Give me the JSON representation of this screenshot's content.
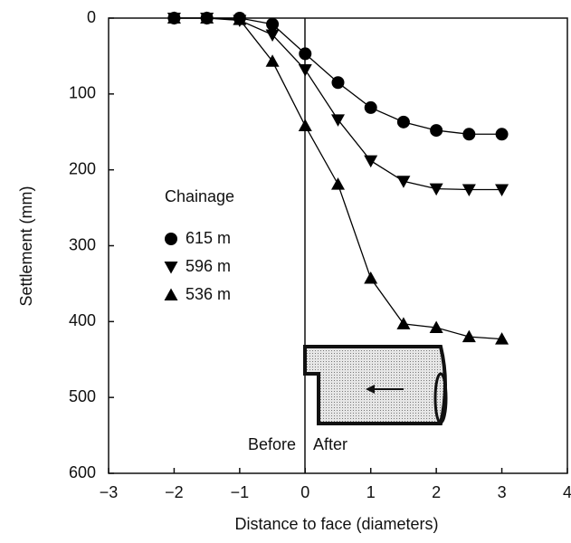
{
  "chart_data": {
    "type": "line",
    "xlabel": "Distance to face (diameters)",
    "ylabel": "Settlement (mm)",
    "xlim": [
      -3,
      4
    ],
    "xticks": [
      {
        "value": -3,
        "label": "−3"
      },
      {
        "value": -2,
        "label": "−2"
      },
      {
        "value": -1,
        "label": "−1"
      },
      0,
      1,
      2,
      3,
      4
    ],
    "ylim": [
      0,
      600
    ],
    "yticks": [
      0,
      100,
      200,
      300,
      400,
      500,
      600
    ],
    "y_inverted": true,
    "legend_title": "Chainage",
    "annotations": [
      "Before",
      "After"
    ],
    "series": [
      {
        "name": "615 m",
        "color": "#000000",
        "marker": "circle",
        "x": [
          -2,
          -1.5,
          -1,
          -0.5,
          0,
          0.5,
          1,
          1.5,
          2,
          2.5,
          3
        ],
        "values": [
          0,
          0,
          0,
          8,
          47,
          85,
          118,
          137,
          148,
          153,
          153
        ]
      },
      {
        "name": "596 m",
        "color": "#000000",
        "marker": "triangle-down",
        "x": [
          -2,
          -1.5,
          -1,
          -0.5,
          0,
          0.5,
          1,
          1.5,
          2,
          2.5,
          3
        ],
        "values": [
          0,
          0,
          3,
          22,
          68,
          134,
          188,
          215,
          225,
          226,
          226
        ]
      },
      {
        "name": "536 m",
        "color": "#000000",
        "marker": "triangle-up",
        "x": [
          -2,
          -1.5,
          -1,
          -0.5,
          0,
          0.5,
          1,
          1.5,
          2,
          2.5,
          3
        ],
        "values": [
          0,
          0,
          2,
          57,
          142,
          219,
          343,
          403,
          408,
          420,
          423
        ]
      }
    ]
  }
}
